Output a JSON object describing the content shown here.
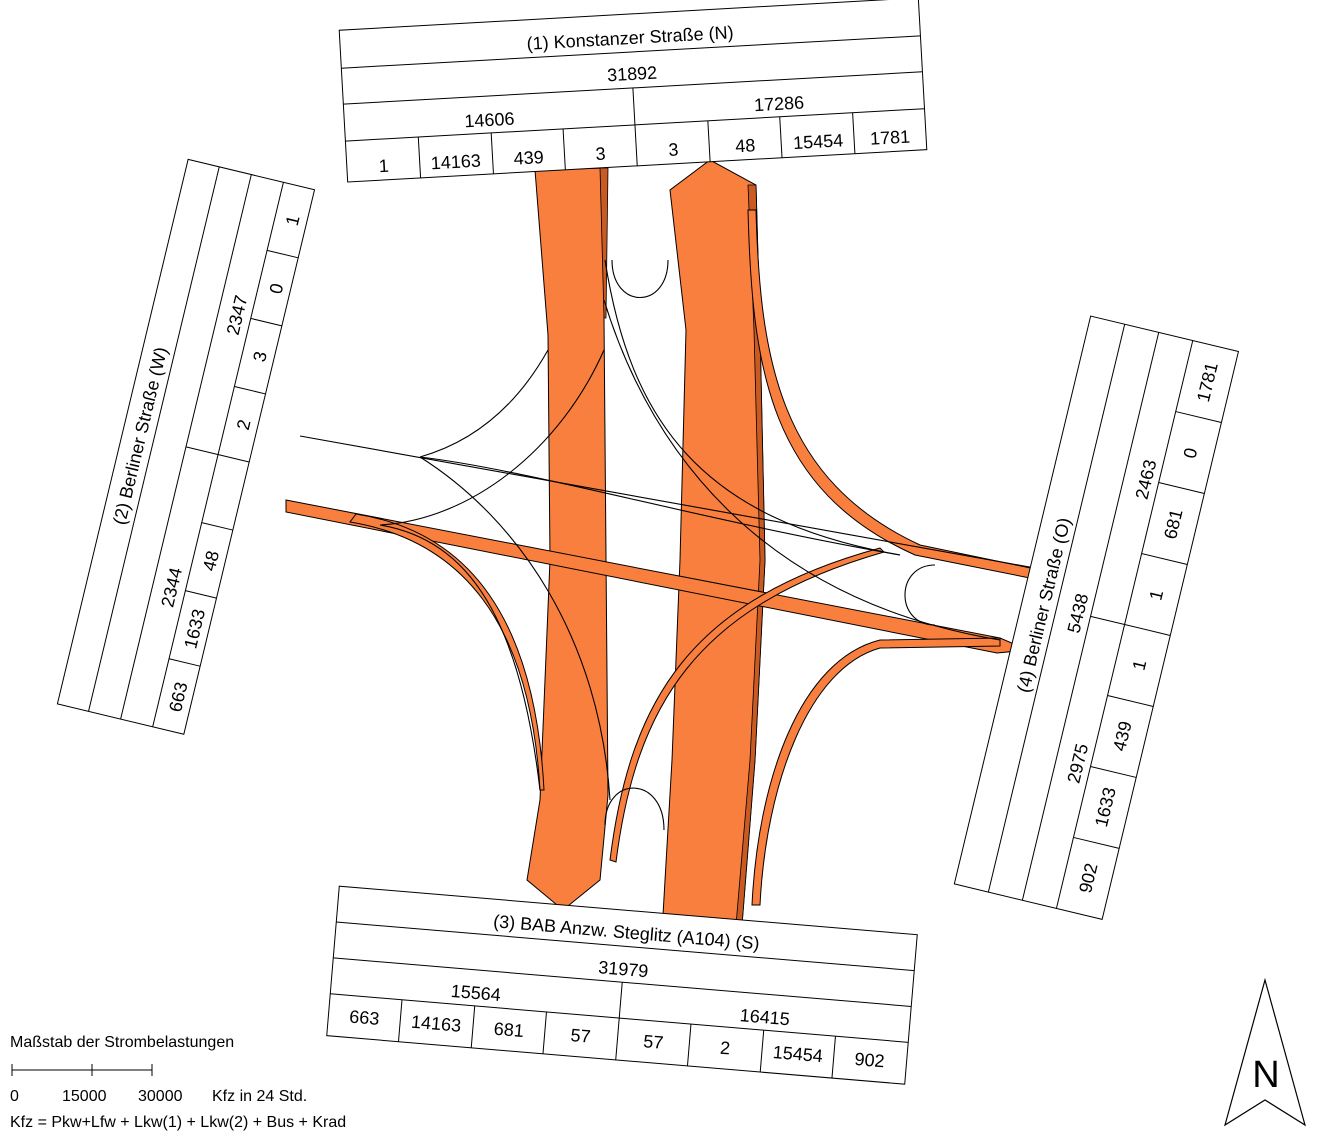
{
  "north": {
    "title": "(1)  Konstanzer Straße (N)",
    "total": "31892",
    "left_sum": "14606",
    "right_sum": "17286",
    "cells": [
      "1",
      "14163",
      "439",
      "3",
      "3",
      "48",
      "15454",
      "1781"
    ]
  },
  "west": {
    "title": "(2)  Berliner Straße (W)",
    "sum_a": "2347",
    "sum_b": "2344",
    "cells": [
      "1",
      "0",
      "3",
      "2",
      "48",
      "1633",
      "663"
    ]
  },
  "south": {
    "title": "(3)  BAB Anzw. Steglitz (A104) (S)",
    "total": "31979",
    "left_sum": "15564",
    "right_sum": "16415",
    "cells": [
      "663",
      "14163",
      "681",
      "57",
      "57",
      "2",
      "15454",
      "902"
    ]
  },
  "east": {
    "title": "(4)  Berliner Straße (O)",
    "total": "5438",
    "sum_a": "2463",
    "sum_b": "2975",
    "cells": [
      "1781",
      "0",
      "681",
      "1",
      "1",
      "439",
      "1633",
      "902"
    ]
  },
  "legend": {
    "scale_title": "Maßstab der Strombelastungen",
    "scale_ticks": [
      "0",
      "15000",
      "30000"
    ],
    "scale_unit": "Kfz in 24 Std.",
    "formula": "Kfz = Pkw+Lfw + Lkw(1) + Lkw(2) + Bus + Krad"
  },
  "compass": {
    "label": "N"
  },
  "colors": {
    "flow": "#f97f3f"
  }
}
